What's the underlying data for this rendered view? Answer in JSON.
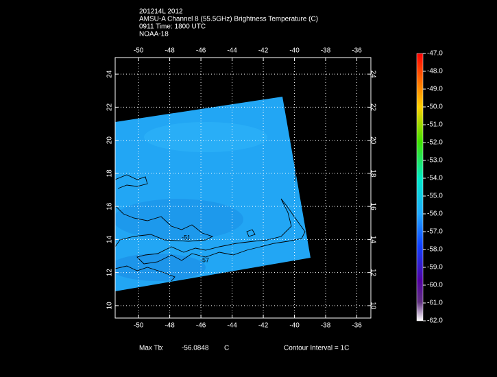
{
  "header": {
    "lines": [
      "201214L 2012",
      "AMSU-A Channel 8 (55.5GHz) Brightness Temperature (C)",
      "0911 Time: 1800 UTC",
      "NOAA-18"
    ]
  },
  "map": {
    "xlim": [
      -51.5,
      -35.1
    ],
    "ylim": [
      9.25,
      25
    ],
    "xticks": [
      -50,
      -48,
      -46,
      -44,
      -42,
      -40,
      -38,
      -36
    ],
    "yticks": [
      10,
      12,
      14,
      16,
      18,
      20,
      22,
      24
    ],
    "grid": true,
    "contour_labels": [
      "-51",
      "-57"
    ]
  },
  "colorbar": {
    "lim": [
      -62,
      -47
    ],
    "ticks": [
      {
        "value": -47,
        "label": "-47.0"
      },
      {
        "value": -48,
        "label": "-48.0"
      },
      {
        "value": -49,
        "label": "-49.0"
      },
      {
        "value": -50,
        "label": "-50.0"
      },
      {
        "value": -51,
        "label": "-51.0"
      },
      {
        "value": -52,
        "label": "-52.0"
      },
      {
        "value": -53,
        "label": "-53.0"
      },
      {
        "value": -54,
        "label": "-54.0"
      },
      {
        "value": -55,
        "label": "-55.0"
      },
      {
        "value": -56,
        "label": "-56.0"
      },
      {
        "value": -57,
        "label": "-57.0"
      },
      {
        "value": -58,
        "label": "-58.0"
      },
      {
        "value": -59,
        "label": "-59.0"
      },
      {
        "value": -60,
        "label": "-60.0"
      },
      {
        "value": -61,
        "label": "-61.0"
      },
      {
        "value": -62,
        "label": "-62.0"
      }
    ]
  },
  "footer": {
    "max_tb_label": "Max Tb:",
    "max_tb_value": "-56.0848",
    "max_tb_unit": "C",
    "contour_interval": "Contour Interval = 1C"
  }
}
